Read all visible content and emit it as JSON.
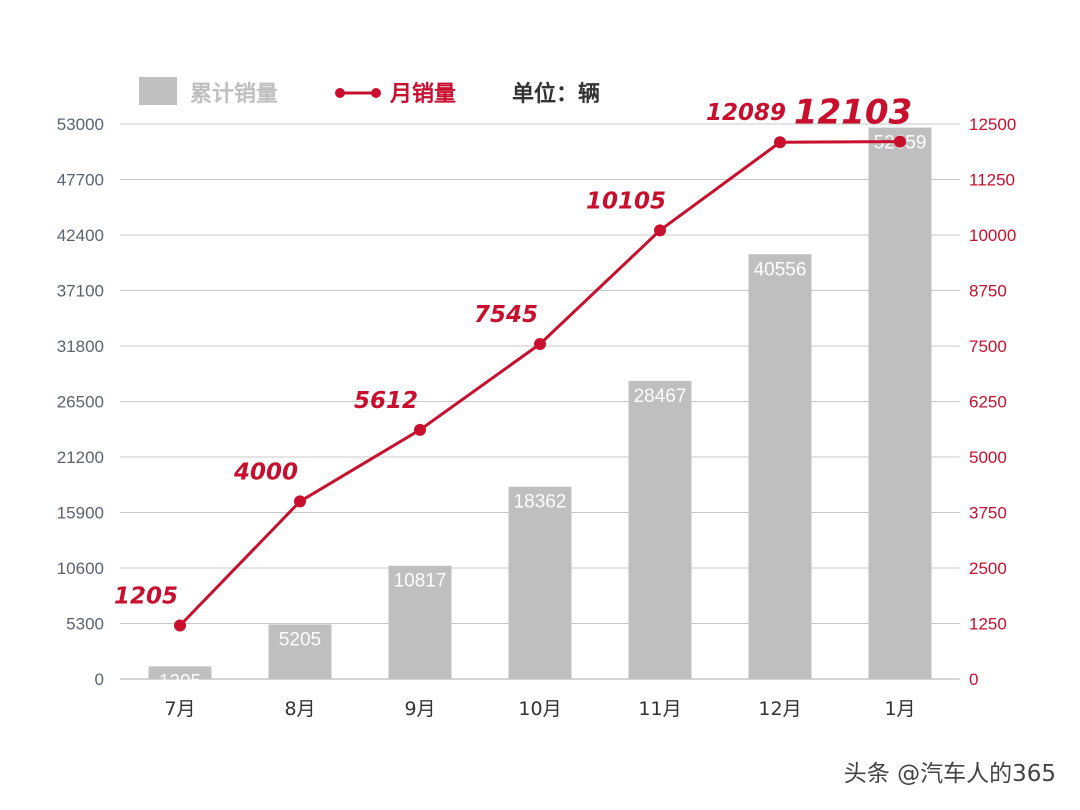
{
  "chart_data": {
    "type": "bar",
    "categories": [
      "7月",
      "8月",
      "9月",
      "10月",
      "11月",
      "12月",
      "1月"
    ],
    "series": [
      {
        "name": "累计销量",
        "type": "bar",
        "axis": "left",
        "values": [
          1205,
          5205,
          10817,
          18362,
          28467,
          40556,
          52659
        ],
        "color": "#bfbfbf"
      },
      {
        "name": "月销量",
        "type": "line",
        "axis": "right",
        "values": [
          1205,
          4000,
          5612,
          7545,
          10105,
          12089,
          12103
        ],
        "color": "#c8102e"
      }
    ],
    "y_left": {
      "ylim": [
        0,
        53000
      ],
      "ticks": [
        "0",
        "5300",
        "10600",
        "15900",
        "21200",
        "26500",
        "31800",
        "37100",
        "42400",
        "47700",
        "53000"
      ]
    },
    "y_right": {
      "ylim": [
        0,
        12500
      ],
      "ticks": [
        "0",
        "1250",
        "2500",
        "3750",
        "5000",
        "6250",
        "7500",
        "8750",
        "10000",
        "11250",
        "12500"
      ]
    },
    "unit_label": "单位：辆",
    "grid": true,
    "legend": "top"
  },
  "colors": {
    "bar": "#bfbfbf",
    "line": "#c8102e",
    "grid": "#c8c8c8",
    "left_tick": "#5a6470"
  },
  "watermark": "头条 @汽车人的365"
}
